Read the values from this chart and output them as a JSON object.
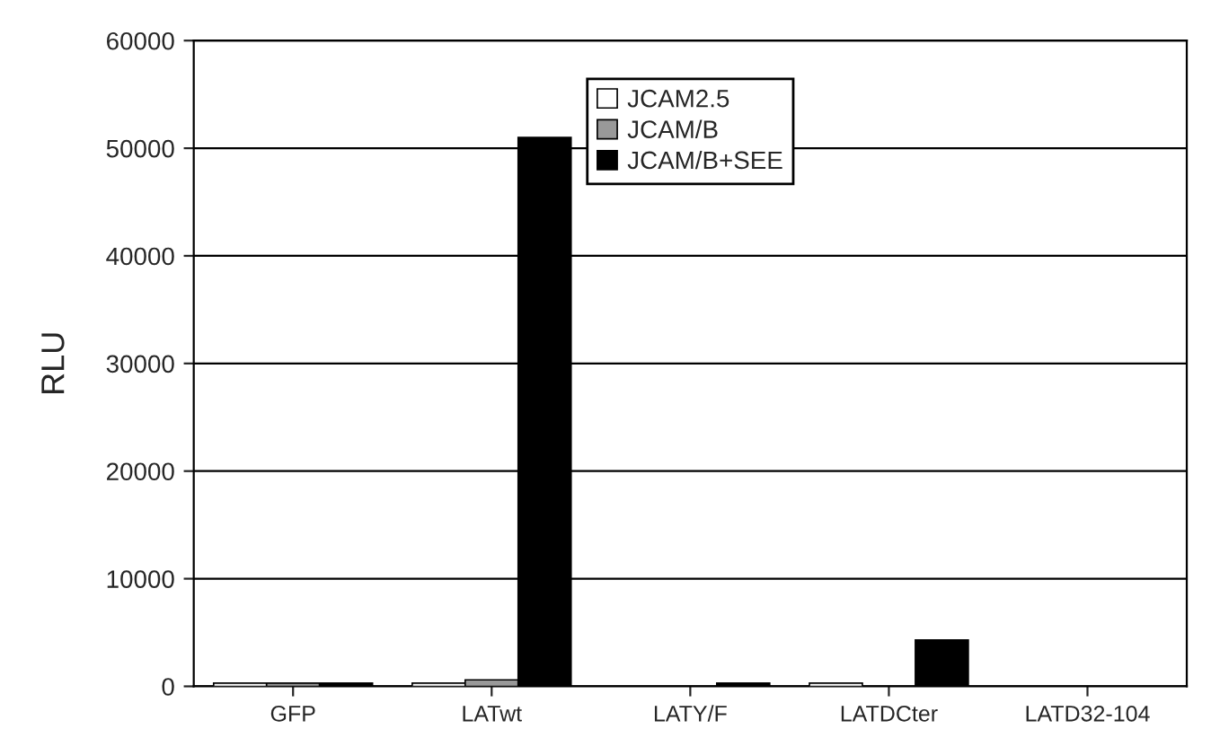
{
  "chart_data": {
    "type": "bar",
    "ylabel": "RLU",
    "categories": [
      "GFP",
      "LATwt",
      "LATY/F",
      "LATDCter",
      "LATD32-104"
    ],
    "series": [
      {
        "name": "JCAM2.5",
        "color": "#ffffff",
        "values": [
          300,
          300,
          null,
          300,
          null
        ]
      },
      {
        "name": "JCAM/B",
        "color": "#999999",
        "values": [
          300,
          600,
          null,
          null,
          null
        ]
      },
      {
        "name": "JCAM/B+SEE",
        "color": "#000000",
        "values": [
          300,
          51000,
          300,
          4300,
          null
        ]
      }
    ],
    "ylim": [
      0,
      60000
    ],
    "yticks": [
      0,
      10000,
      20000,
      30000,
      40000,
      50000,
      60000
    ],
    "grid": "y",
    "legend": "top"
  }
}
